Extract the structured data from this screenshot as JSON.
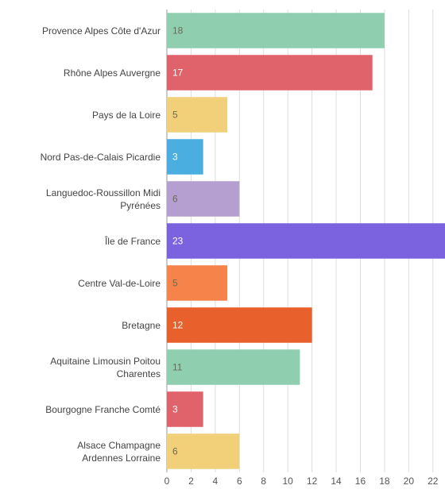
{
  "chart_data": {
    "type": "bar",
    "orientation": "horizontal",
    "categories": [
      "Provence Alpes Côte d'Azur",
      "Rhône Alpes Auvergne",
      "Pays de la Loire",
      "Nord Pas-de-Calais Picardie",
      "Languedoc-Roussillon Midi\nPyrénées",
      "Île de France",
      "Centre Val-de-Loire",
      "Bretagne",
      "Aquitaine Limousin Poitou\nCharentes",
      "Bourgogne Franche Comté",
      "Alsace Champagne\nArdennes Lorraine"
    ],
    "values": [
      18,
      17,
      5,
      3,
      6,
      23,
      5,
      12,
      11,
      3,
      6
    ],
    "colors": [
      "#8fcfb0",
      "#e0626a",
      "#f2d07a",
      "#4aaee0",
      "#b59fd0",
      "#7b63e0",
      "#f5834a",
      "#e8602c",
      "#8fcfb0",
      "#e0626a",
      "#f2d07a"
    ],
    "xlim": [
      0,
      23
    ],
    "xticks": [
      0,
      2,
      4,
      6,
      8,
      10,
      12,
      14,
      16,
      18,
      20,
      22
    ],
    "grid": true
  }
}
